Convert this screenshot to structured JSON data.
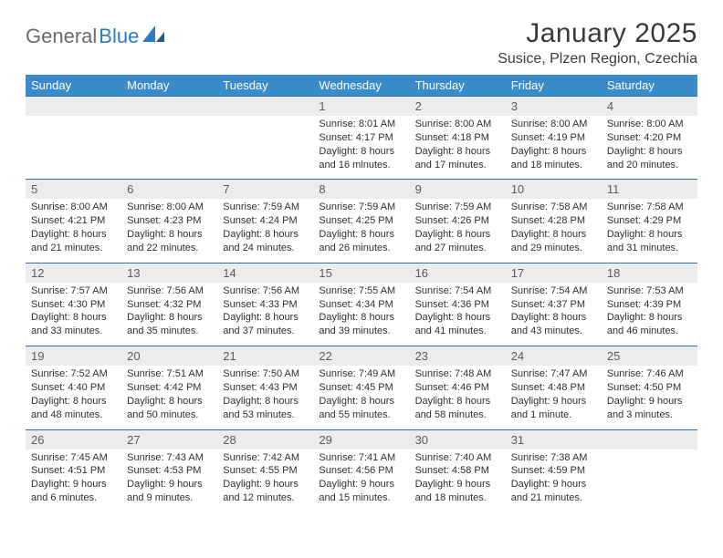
{
  "brand": {
    "name1": "General",
    "name2": "Blue"
  },
  "title": "January 2025",
  "location": "Susice, Plzen Region, Czechia",
  "colors": {
    "header_bg": "#3a8cc9",
    "header_text": "#ffffff",
    "daynum_bg": "#ececec",
    "row_border": "#2f6fa3",
    "body_text": "#2f2f2f",
    "title_text": "#3a3a3a",
    "logo_gray": "#6b6b6b",
    "logo_blue": "#2a7bbf"
  },
  "dow": [
    "Sunday",
    "Monday",
    "Tuesday",
    "Wednesday",
    "Thursday",
    "Friday",
    "Saturday"
  ],
  "weeks": [
    [
      {
        "n": "",
        "sr": "",
        "ss": "",
        "dl1": "",
        "dl2": ""
      },
      {
        "n": "",
        "sr": "",
        "ss": "",
        "dl1": "",
        "dl2": ""
      },
      {
        "n": "",
        "sr": "",
        "ss": "",
        "dl1": "",
        "dl2": ""
      },
      {
        "n": "1",
        "sr": "Sunrise: 8:01 AM",
        "ss": "Sunset: 4:17 PM",
        "dl1": "Daylight: 8 hours",
        "dl2": "and 16 minutes."
      },
      {
        "n": "2",
        "sr": "Sunrise: 8:00 AM",
        "ss": "Sunset: 4:18 PM",
        "dl1": "Daylight: 8 hours",
        "dl2": "and 17 minutes."
      },
      {
        "n": "3",
        "sr": "Sunrise: 8:00 AM",
        "ss": "Sunset: 4:19 PM",
        "dl1": "Daylight: 8 hours",
        "dl2": "and 18 minutes."
      },
      {
        "n": "4",
        "sr": "Sunrise: 8:00 AM",
        "ss": "Sunset: 4:20 PM",
        "dl1": "Daylight: 8 hours",
        "dl2": "and 20 minutes."
      }
    ],
    [
      {
        "n": "5",
        "sr": "Sunrise: 8:00 AM",
        "ss": "Sunset: 4:21 PM",
        "dl1": "Daylight: 8 hours",
        "dl2": "and 21 minutes."
      },
      {
        "n": "6",
        "sr": "Sunrise: 8:00 AM",
        "ss": "Sunset: 4:23 PM",
        "dl1": "Daylight: 8 hours",
        "dl2": "and 22 minutes."
      },
      {
        "n": "7",
        "sr": "Sunrise: 7:59 AM",
        "ss": "Sunset: 4:24 PM",
        "dl1": "Daylight: 8 hours",
        "dl2": "and 24 minutes."
      },
      {
        "n": "8",
        "sr": "Sunrise: 7:59 AM",
        "ss": "Sunset: 4:25 PM",
        "dl1": "Daylight: 8 hours",
        "dl2": "and 26 minutes."
      },
      {
        "n": "9",
        "sr": "Sunrise: 7:59 AM",
        "ss": "Sunset: 4:26 PM",
        "dl1": "Daylight: 8 hours",
        "dl2": "and 27 minutes."
      },
      {
        "n": "10",
        "sr": "Sunrise: 7:58 AM",
        "ss": "Sunset: 4:28 PM",
        "dl1": "Daylight: 8 hours",
        "dl2": "and 29 minutes."
      },
      {
        "n": "11",
        "sr": "Sunrise: 7:58 AM",
        "ss": "Sunset: 4:29 PM",
        "dl1": "Daylight: 8 hours",
        "dl2": "and 31 minutes."
      }
    ],
    [
      {
        "n": "12",
        "sr": "Sunrise: 7:57 AM",
        "ss": "Sunset: 4:30 PM",
        "dl1": "Daylight: 8 hours",
        "dl2": "and 33 minutes."
      },
      {
        "n": "13",
        "sr": "Sunrise: 7:56 AM",
        "ss": "Sunset: 4:32 PM",
        "dl1": "Daylight: 8 hours",
        "dl2": "and 35 minutes."
      },
      {
        "n": "14",
        "sr": "Sunrise: 7:56 AM",
        "ss": "Sunset: 4:33 PM",
        "dl1": "Daylight: 8 hours",
        "dl2": "and 37 minutes."
      },
      {
        "n": "15",
        "sr": "Sunrise: 7:55 AM",
        "ss": "Sunset: 4:34 PM",
        "dl1": "Daylight: 8 hours",
        "dl2": "and 39 minutes."
      },
      {
        "n": "16",
        "sr": "Sunrise: 7:54 AM",
        "ss": "Sunset: 4:36 PM",
        "dl1": "Daylight: 8 hours",
        "dl2": "and 41 minutes."
      },
      {
        "n": "17",
        "sr": "Sunrise: 7:54 AM",
        "ss": "Sunset: 4:37 PM",
        "dl1": "Daylight: 8 hours",
        "dl2": "and 43 minutes."
      },
      {
        "n": "18",
        "sr": "Sunrise: 7:53 AM",
        "ss": "Sunset: 4:39 PM",
        "dl1": "Daylight: 8 hours",
        "dl2": "and 46 minutes."
      }
    ],
    [
      {
        "n": "19",
        "sr": "Sunrise: 7:52 AM",
        "ss": "Sunset: 4:40 PM",
        "dl1": "Daylight: 8 hours",
        "dl2": "and 48 minutes."
      },
      {
        "n": "20",
        "sr": "Sunrise: 7:51 AM",
        "ss": "Sunset: 4:42 PM",
        "dl1": "Daylight: 8 hours",
        "dl2": "and 50 minutes."
      },
      {
        "n": "21",
        "sr": "Sunrise: 7:50 AM",
        "ss": "Sunset: 4:43 PM",
        "dl1": "Daylight: 8 hours",
        "dl2": "and 53 minutes."
      },
      {
        "n": "22",
        "sr": "Sunrise: 7:49 AM",
        "ss": "Sunset: 4:45 PM",
        "dl1": "Daylight: 8 hours",
        "dl2": "and 55 minutes."
      },
      {
        "n": "23",
        "sr": "Sunrise: 7:48 AM",
        "ss": "Sunset: 4:46 PM",
        "dl1": "Daylight: 8 hours",
        "dl2": "and 58 minutes."
      },
      {
        "n": "24",
        "sr": "Sunrise: 7:47 AM",
        "ss": "Sunset: 4:48 PM",
        "dl1": "Daylight: 9 hours",
        "dl2": "and 1 minute."
      },
      {
        "n": "25",
        "sr": "Sunrise: 7:46 AM",
        "ss": "Sunset: 4:50 PM",
        "dl1": "Daylight: 9 hours",
        "dl2": "and 3 minutes."
      }
    ],
    [
      {
        "n": "26",
        "sr": "Sunrise: 7:45 AM",
        "ss": "Sunset: 4:51 PM",
        "dl1": "Daylight: 9 hours",
        "dl2": "and 6 minutes."
      },
      {
        "n": "27",
        "sr": "Sunrise: 7:43 AM",
        "ss": "Sunset: 4:53 PM",
        "dl1": "Daylight: 9 hours",
        "dl2": "and 9 minutes."
      },
      {
        "n": "28",
        "sr": "Sunrise: 7:42 AM",
        "ss": "Sunset: 4:55 PM",
        "dl1": "Daylight: 9 hours",
        "dl2": "and 12 minutes."
      },
      {
        "n": "29",
        "sr": "Sunrise: 7:41 AM",
        "ss": "Sunset: 4:56 PM",
        "dl1": "Daylight: 9 hours",
        "dl2": "and 15 minutes."
      },
      {
        "n": "30",
        "sr": "Sunrise: 7:40 AM",
        "ss": "Sunset: 4:58 PM",
        "dl1": "Daylight: 9 hours",
        "dl2": "and 18 minutes."
      },
      {
        "n": "31",
        "sr": "Sunrise: 7:38 AM",
        "ss": "Sunset: 4:59 PM",
        "dl1": "Daylight: 9 hours",
        "dl2": "and 21 minutes."
      },
      {
        "n": "",
        "sr": "",
        "ss": "",
        "dl1": "",
        "dl2": ""
      }
    ]
  ]
}
